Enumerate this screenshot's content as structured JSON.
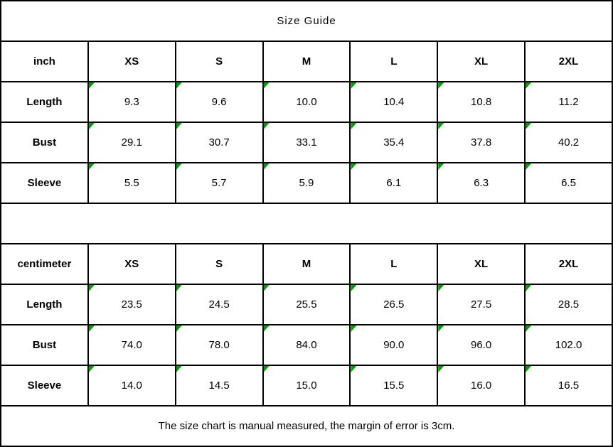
{
  "title": "Size Guide",
  "footer": "The size chart is manual measured, the margin of error is 3cm.",
  "colors": {
    "background": "#ffffff",
    "border": "#000000",
    "text": "#000000",
    "comment_marker": "#00a000"
  },
  "tables": [
    {
      "unit": "inch",
      "sizes": [
        "XS",
        "S",
        "M",
        "L",
        "XL",
        "2XL"
      ],
      "rows": [
        {
          "label": "Length",
          "values": [
            "9.3",
            "9.6",
            "10.0",
            "10.4",
            "10.8",
            "11.2"
          ]
        },
        {
          "label": "Bust",
          "values": [
            "29.1",
            "30.7",
            "33.1",
            "35.4",
            "37.8",
            "40.2"
          ]
        },
        {
          "label": "Sleeve",
          "values": [
            "5.5",
            "5.7",
            "5.9",
            "6.1",
            "6.3",
            "6.5"
          ]
        }
      ]
    },
    {
      "unit": "centimeter",
      "sizes": [
        "XS",
        "S",
        "M",
        "L",
        "XL",
        "2XL"
      ],
      "rows": [
        {
          "label": "Length",
          "values": [
            "23.5",
            "24.5",
            "25.5",
            "26.5",
            "27.5",
            "28.5"
          ]
        },
        {
          "label": "Bust",
          "values": [
            "74.0",
            "78.0",
            "84.0",
            "90.0",
            "96.0",
            "102.0"
          ]
        },
        {
          "label": "Sleeve",
          "values": [
            "14.0",
            "14.5",
            "15.0",
            "15.5",
            "16.0",
            "16.5"
          ]
        }
      ]
    }
  ],
  "chart_data": [
    {
      "type": "table",
      "title": "Size Guide",
      "unit": "inch",
      "columns": [
        "inch",
        "XS",
        "S",
        "M",
        "L",
        "XL",
        "2XL"
      ],
      "rows": [
        [
          "Length",
          "9.3",
          "9.6",
          "10.0",
          "10.4",
          "10.8",
          "11.2"
        ],
        [
          "Bust",
          "29.1",
          "30.7",
          "33.1",
          "35.4",
          "37.8",
          "40.2"
        ],
        [
          "Sleeve",
          "5.5",
          "5.7",
          "5.9",
          "6.1",
          "6.3",
          "6.5"
        ]
      ]
    },
    {
      "type": "table",
      "title": "Size Guide",
      "unit": "centimeter",
      "columns": [
        "centimeter",
        "XS",
        "S",
        "M",
        "L",
        "XL",
        "2XL"
      ],
      "rows": [
        [
          "Length",
          "23.5",
          "24.5",
          "25.5",
          "26.5",
          "27.5",
          "28.5"
        ],
        [
          "Bust",
          "74.0",
          "78.0",
          "84.0",
          "90.0",
          "96.0",
          "102.0"
        ],
        [
          "Sleeve",
          "14.0",
          "14.5",
          "15.0",
          "15.5",
          "16.0",
          "16.5"
        ]
      ],
      "annotation": "The size chart is manual measured, the margin of error is 3cm."
    }
  ]
}
